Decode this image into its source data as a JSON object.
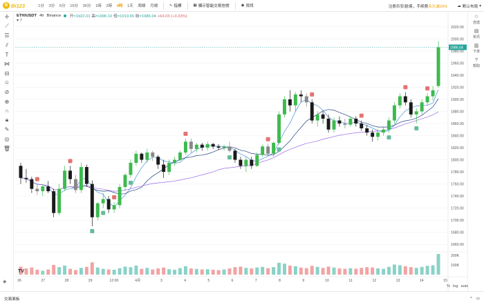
{
  "logo": {
    "mark": "B",
    "text": "Bi123"
  },
  "intervals": [
    "1分",
    "3分",
    "5分",
    "15分",
    "30分",
    "1時",
    "2時",
    "4時",
    "1天",
    "周線",
    "月線"
  ],
  "active_interval_index": 7,
  "toolbar": {
    "indicators": "指標",
    "show_trading_signals": "顯示智能交易信號",
    "news": "資訊"
  },
  "top_right": {
    "notice_prefix": "注冊币安/欧易，手续费",
    "notice_highlight": "永久减20%",
    "theme": "默认布局"
  },
  "legend": {
    "symbol": "ETH/USDT",
    "interval": "4h",
    "exchange": "Binance",
    "open_k": "开",
    "open": "=1922.01",
    "high_k": "高",
    "high": "=1996.10",
    "low_k": "低",
    "low": "=1919.65",
    "close_k": "收",
    "close": "=1986.04",
    "change": "+64.03 (+3.33%)",
    "collapse": "▾ 7"
  },
  "right_panel": [
    {
      "icon": "☆",
      "label": "自选"
    },
    {
      "icon": "▤",
      "label": "资讯"
    },
    {
      "icon": "▥",
      "label": "下单"
    },
    {
      "icon": "?",
      "label": "帮助"
    }
  ],
  "colors": {
    "up": "#3dba4e",
    "down": "#1a1a1a",
    "ma1": "#4a90d9",
    "ma2": "#1f3f7f",
    "ma3": "#9a6be8",
    "vol_up": "#8ad2c7",
    "vol_down": "#f2a3a3",
    "sell_badge": "#e57373",
    "buy_badge": "#66bb9a"
  },
  "price_axis": [
    "2020.00",
    "2000.00",
    "1980.00",
    "1960.00",
    "1940.00",
    "1920.00",
    "1900.00",
    "1880.00",
    "1860.00",
    "1840.00",
    "1820.00",
    "1800.00",
    "1780.00",
    "1760.00",
    "1740.00",
    "1720.00",
    "1700.00",
    "1680.00",
    "1660.00"
  ],
  "current_price_tag": "1986.04",
  "volume_axis": [
    "200K",
    "100K"
  ],
  "time_axis": [
    "26",
    "27",
    "28",
    "29",
    "12:00",
    "4月",
    "3",
    "4",
    "5",
    "6",
    "7",
    "8",
    "9",
    "10",
    "11",
    "12",
    "13",
    "14",
    "15"
  ],
  "scale_options": [
    "%",
    "log",
    "auto"
  ],
  "bottom": {
    "left": "交易面板",
    "right_icons": [
      "^",
      "▭"
    ]
  },
  "chart_data": {
    "type": "candlestick",
    "symbol": "ETH/USDT",
    "interval": "4h",
    "ylim": [
      1650,
      2030
    ],
    "candles": [
      [
        1790,
        1795,
        1760,
        1770
      ],
      [
        1770,
        1785,
        1762,
        1768
      ],
      [
        1768,
        1772,
        1745,
        1752
      ],
      [
        1752,
        1760,
        1742,
        1748
      ],
      [
        1748,
        1758,
        1740,
        1756
      ],
      [
        1756,
        1765,
        1745,
        1748
      ],
      [
        1748,
        1752,
        1705,
        1712
      ],
      [
        1712,
        1760,
        1708,
        1752
      ],
      [
        1752,
        1790,
        1748,
        1782
      ],
      [
        1782,
        1790,
        1760,
        1768
      ],
      [
        1768,
        1775,
        1745,
        1750
      ],
      [
        1750,
        1795,
        1745,
        1788
      ],
      [
        1788,
        1792,
        1755,
        1760
      ],
      [
        1760,
        1766,
        1690,
        1705
      ],
      [
        1705,
        1730,
        1700,
        1728
      ],
      [
        1728,
        1745,
        1720,
        1735
      ],
      [
        1735,
        1740,
        1712,
        1718
      ],
      [
        1718,
        1730,
        1712,
        1725
      ],
      [
        1725,
        1760,
        1720,
        1755
      ],
      [
        1755,
        1778,
        1750,
        1775
      ],
      [
        1775,
        1800,
        1770,
        1795
      ],
      [
        1795,
        1815,
        1790,
        1810
      ],
      [
        1810,
        1812,
        1795,
        1800
      ],
      [
        1800,
        1818,
        1795,
        1812
      ],
      [
        1812,
        1815,
        1798,
        1805
      ],
      [
        1805,
        1808,
        1785,
        1792
      ],
      [
        1792,
        1800,
        1770,
        1780
      ],
      [
        1780,
        1800,
        1775,
        1795
      ],
      [
        1795,
        1805,
        1790,
        1800
      ],
      [
        1800,
        1815,
        1798,
        1812
      ],
      [
        1812,
        1835,
        1808,
        1830
      ],
      [
        1830,
        1835,
        1812,
        1818
      ],
      [
        1818,
        1828,
        1812,
        1825
      ],
      [
        1825,
        1828,
        1815,
        1820
      ],
      [
        1820,
        1830,
        1815,
        1826
      ],
      [
        1826,
        1828,
        1818,
        1822
      ],
      [
        1822,
        1826,
        1816,
        1820
      ],
      [
        1820,
        1825,
        1815,
        1822
      ],
      [
        1822,
        1830,
        1812,
        1815
      ],
      [
        1815,
        1818,
        1795,
        1800
      ],
      [
        1800,
        1805,
        1785,
        1790
      ],
      [
        1790,
        1805,
        1780,
        1800
      ],
      [
        1800,
        1805,
        1785,
        1790
      ],
      [
        1790,
        1812,
        1788,
        1808
      ],
      [
        1808,
        1825,
        1805,
        1822
      ],
      [
        1822,
        1826,
        1805,
        1810
      ],
      [
        1810,
        1830,
        1805,
        1828
      ],
      [
        1828,
        1880,
        1825,
        1875
      ],
      [
        1875,
        1905,
        1870,
        1900
      ],
      [
        1900,
        1915,
        1880,
        1890
      ],
      [
        1890,
        1912,
        1880,
        1908
      ],
      [
        1908,
        1915,
        1895,
        1905
      ],
      [
        1905,
        1910,
        1888,
        1895
      ],
      [
        1895,
        1900,
        1860,
        1865
      ],
      [
        1865,
        1880,
        1855,
        1875
      ],
      [
        1875,
        1880,
        1860,
        1868
      ],
      [
        1868,
        1875,
        1845,
        1850
      ],
      [
        1850,
        1870,
        1845,
        1865
      ],
      [
        1865,
        1872,
        1855,
        1860
      ],
      [
        1860,
        1868,
        1852,
        1858
      ],
      [
        1858,
        1872,
        1855,
        1868
      ],
      [
        1868,
        1872,
        1855,
        1860
      ],
      [
        1860,
        1865,
        1848,
        1852
      ],
      [
        1852,
        1858,
        1840,
        1845
      ],
      [
        1845,
        1850,
        1830,
        1838
      ],
      [
        1838,
        1850,
        1832,
        1845
      ],
      [
        1845,
        1855,
        1840,
        1850
      ],
      [
        1850,
        1870,
        1845,
        1865
      ],
      [
        1865,
        1895,
        1860,
        1890
      ],
      [
        1890,
        1910,
        1885,
        1905
      ],
      [
        1905,
        1912,
        1890,
        1895
      ],
      [
        1895,
        1900,
        1870,
        1875
      ],
      [
        1875,
        1885,
        1860,
        1880
      ],
      [
        1880,
        1900,
        1875,
        1895
      ],
      [
        1895,
        1910,
        1890,
        1905
      ],
      [
        1905,
        1922,
        1898,
        1915
      ],
      [
        1922,
        1996,
        1919,
        1986
      ]
    ],
    "volume": [
      62,
      48,
      55,
      38,
      30,
      40,
      75,
      58,
      70,
      45,
      35,
      52,
      60,
      95,
      55,
      45,
      40,
      38,
      50,
      62,
      58,
      70,
      45,
      52,
      40,
      48,
      55,
      42,
      38,
      50,
      65,
      48,
      44,
      40,
      42,
      38,
      35,
      40,
      48,
      58,
      62,
      52,
      48,
      55,
      60,
      50,
      58,
      92,
      85,
      70,
      65,
      55,
      50,
      68,
      60,
      52,
      62,
      55,
      48,
      45,
      50,
      46,
      52,
      58,
      55,
      48,
      45,
      60,
      78,
      72,
      65,
      58,
      52,
      60,
      68,
      72,
      160
    ]
  }
}
